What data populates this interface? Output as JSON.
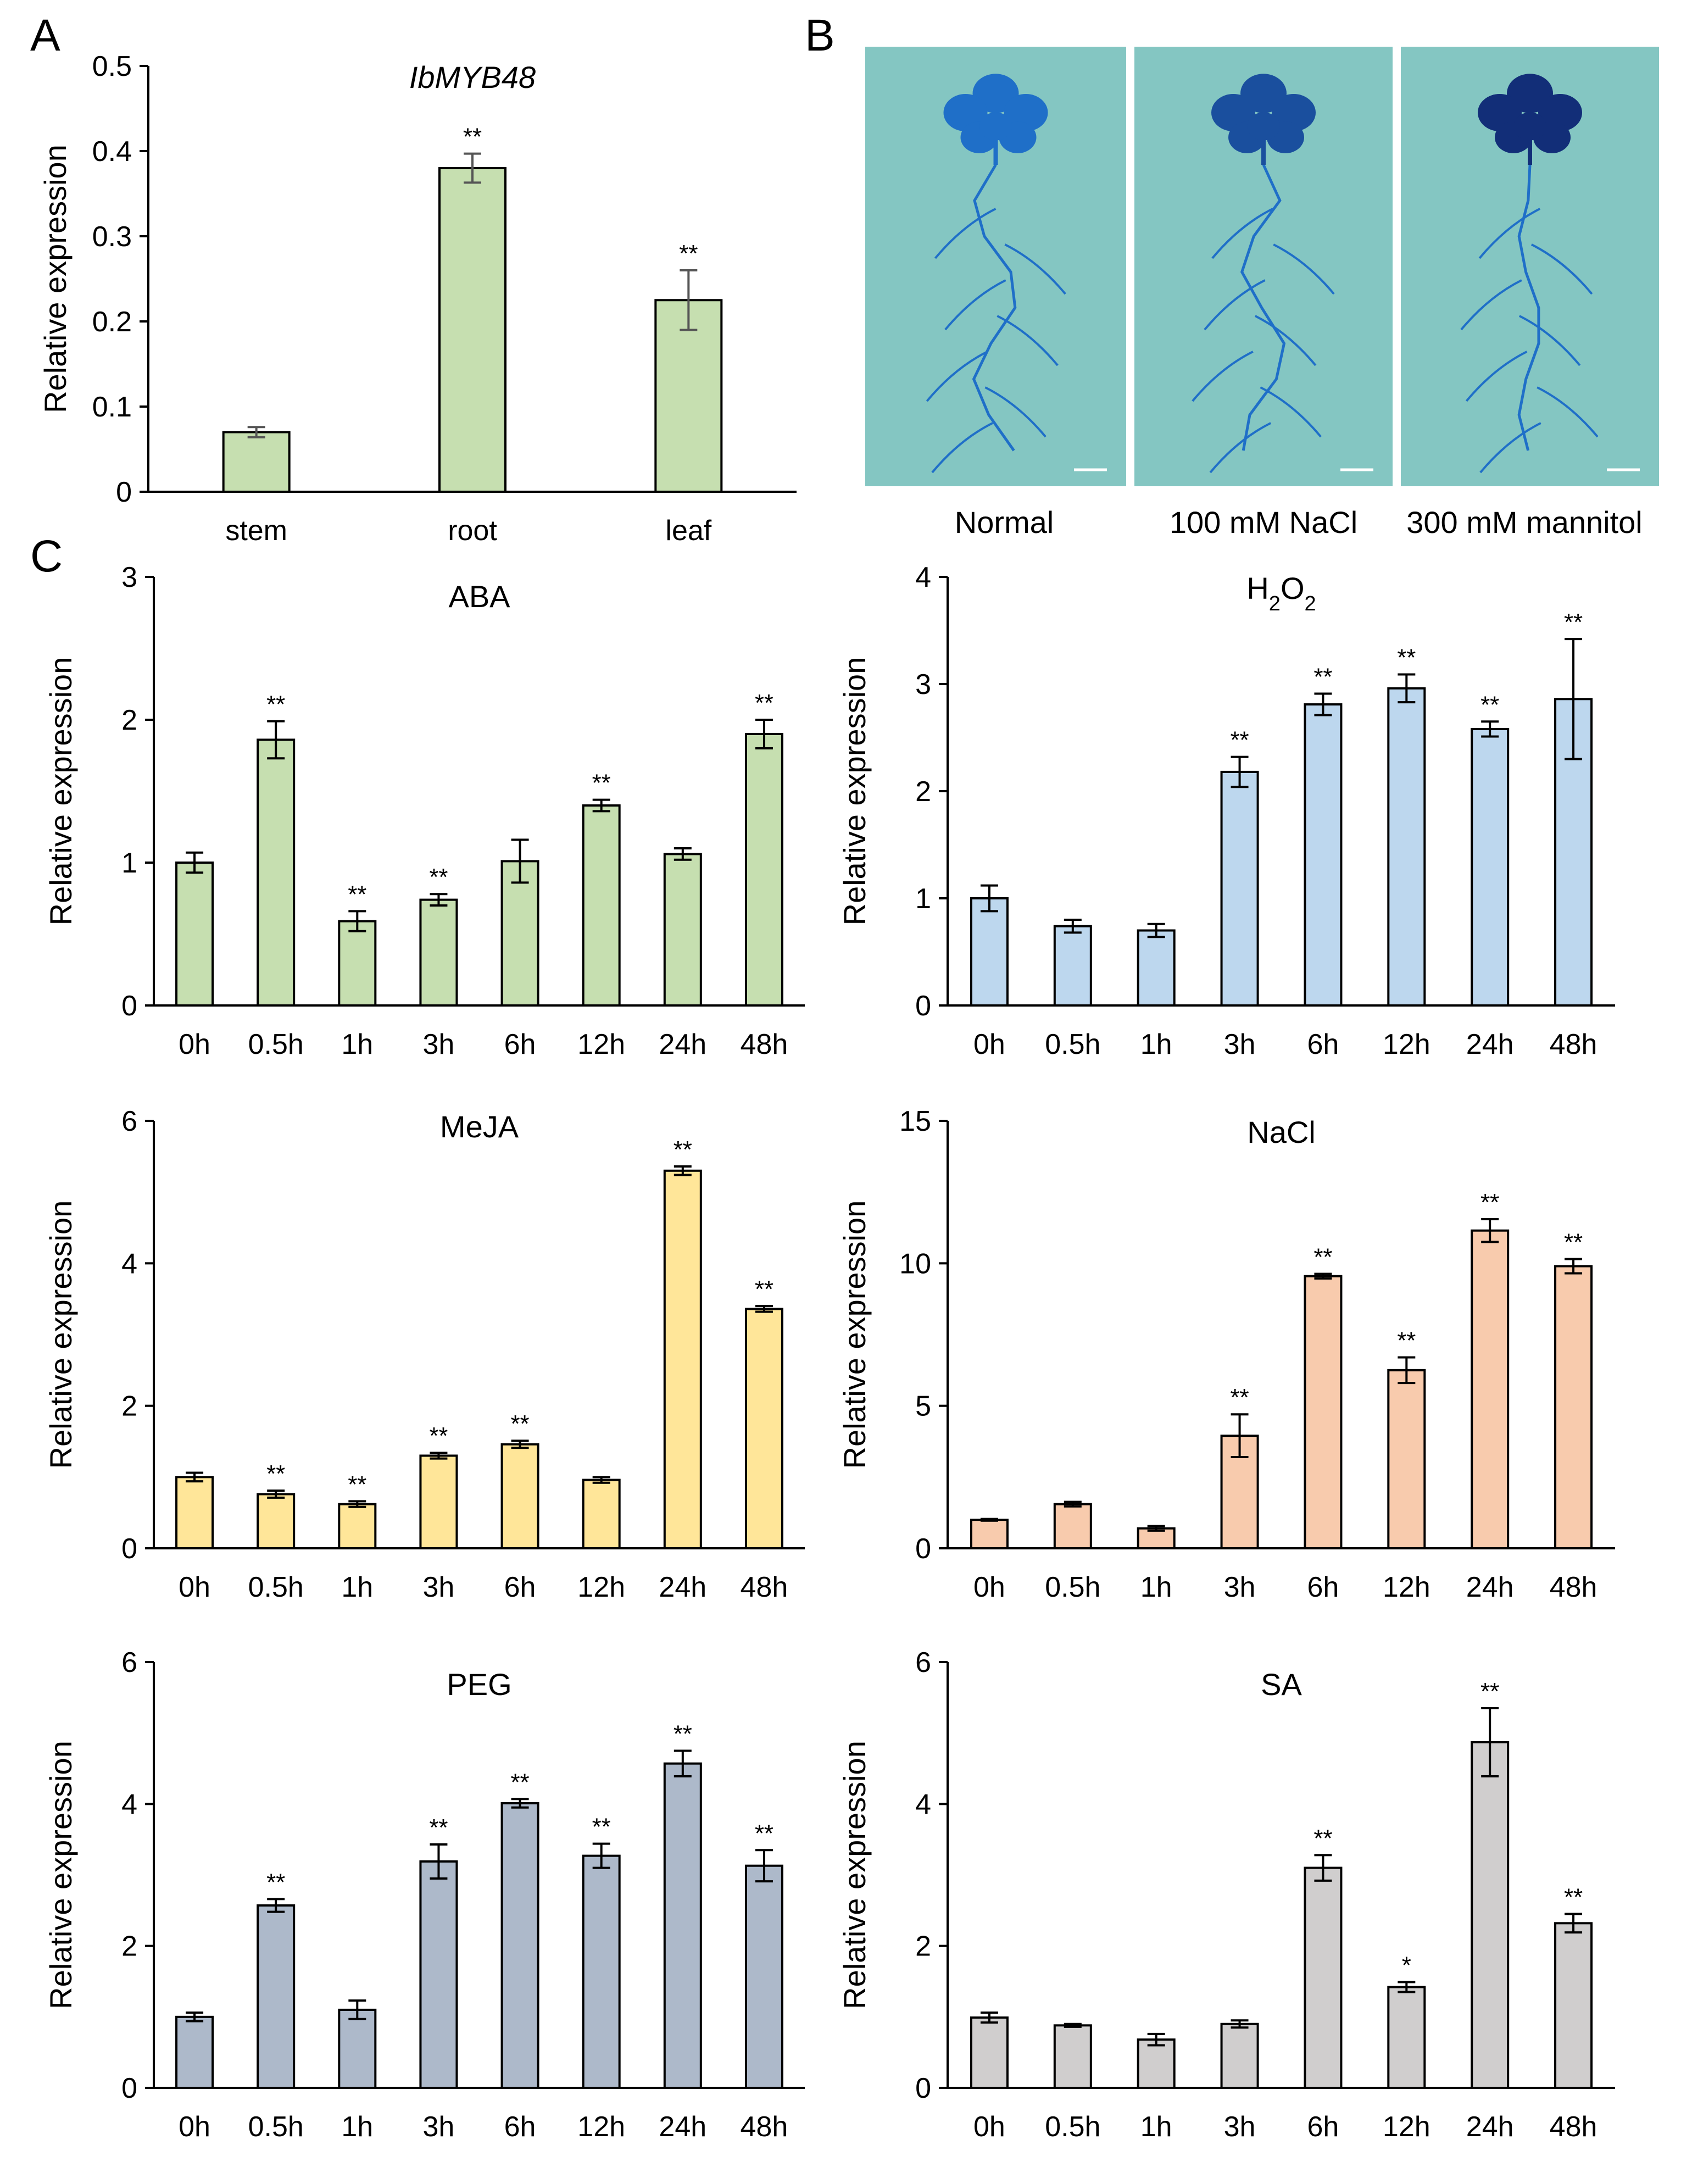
{
  "figure": {
    "panels": [
      "A",
      "B",
      "C"
    ],
    "ylabel": "Relative expression",
    "panel_b": {
      "labels": [
        "Normal",
        "100 mM NaCl",
        "300 mM mannitol"
      ],
      "colors": {
        "background": "#84c6c2",
        "stain": "#1f6fc8",
        "stain_dark": "#122e78"
      }
    }
  },
  "chart_data": [
    {
      "id": "A",
      "type": "bar",
      "title": "IbMYB48",
      "title_italic": true,
      "ylabel": "Relative expression",
      "xlabel": "",
      "categories": [
        "stem",
        "root",
        "leaf"
      ],
      "values": [
        0.07,
        0.38,
        0.225
      ],
      "errors": [
        0.006,
        0.017,
        0.035
      ],
      "sig": [
        "",
        "**",
        "**"
      ],
      "ylim": [
        0,
        0.5
      ],
      "yticks": [
        0,
        0.1,
        0.2,
        0.3,
        0.4,
        0.5
      ],
      "ytick_labels": [
        "0",
        "0.1",
        "0.2",
        "0.3",
        "0.4",
        "0.5"
      ],
      "color": "#c6dfb0",
      "edge_color": "#000000",
      "error_color": "#555555"
    },
    {
      "id": "ABA",
      "type": "bar",
      "title": "ABA",
      "ylabel": "Relative expression",
      "categories": [
        "0h",
        "0.5h",
        "1h",
        "3h",
        "6h",
        "12h",
        "24h",
        "48h"
      ],
      "values": [
        1.0,
        1.86,
        0.59,
        0.74,
        1.01,
        1.4,
        1.06,
        1.9
      ],
      "errors": [
        0.07,
        0.13,
        0.07,
        0.04,
        0.15,
        0.04,
        0.04,
        0.1
      ],
      "sig": [
        "",
        "**",
        "**",
        "**",
        "",
        "**",
        "",
        "**"
      ],
      "ylim": [
        0,
        3
      ],
      "yticks": [
        0,
        1,
        2,
        3
      ],
      "ytick_labels": [
        "0",
        "1",
        "2",
        "3"
      ],
      "color": "#c6dfb0"
    },
    {
      "id": "H2O2",
      "type": "bar",
      "title": "H2O2",
      "title_parts": [
        "H",
        "2",
        "O",
        "2"
      ],
      "ylabel": "Relative expression",
      "categories": [
        "0h",
        "0.5h",
        "1h",
        "3h",
        "6h",
        "12h",
        "24h",
        "48h"
      ],
      "values": [
        1.0,
        0.74,
        0.7,
        2.18,
        2.81,
        2.96,
        2.58,
        2.86
      ],
      "errors": [
        0.12,
        0.06,
        0.06,
        0.14,
        0.1,
        0.13,
        0.07,
        0.56
      ],
      "sig": [
        "",
        "",
        "",
        "**",
        "**",
        "**",
        "**",
        "**"
      ],
      "ylim": [
        0,
        4
      ],
      "yticks": [
        0,
        1,
        2,
        3,
        4
      ],
      "ytick_labels": [
        "0",
        "1",
        "2",
        "3",
        "4"
      ],
      "color": "#bdd7ee"
    },
    {
      "id": "MeJA",
      "type": "bar",
      "title": "MeJA",
      "ylabel": "Relative expression",
      "categories": [
        "0h",
        "0.5h",
        "1h",
        "3h",
        "6h",
        "12h",
        "24h",
        "48h"
      ],
      "values": [
        1.0,
        0.76,
        0.62,
        1.3,
        1.46,
        0.96,
        5.3,
        3.36
      ],
      "errors": [
        0.06,
        0.05,
        0.04,
        0.04,
        0.05,
        0.04,
        0.06,
        0.04
      ],
      "sig": [
        "",
        "**",
        "**",
        "**",
        "**",
        "",
        "**",
        "**"
      ],
      "ylim": [
        0,
        6
      ],
      "yticks": [
        0,
        2,
        4,
        6
      ],
      "ytick_labels": [
        "0",
        "2",
        "4",
        "6"
      ],
      "color": "#ffe699"
    },
    {
      "id": "NaCl",
      "type": "bar",
      "title": "NaCl",
      "ylabel": "Relative expression",
      "categories": [
        "0h",
        "0.5h",
        "1h",
        "3h",
        "6h",
        "12h",
        "24h",
        "48h"
      ],
      "values": [
        1.0,
        1.55,
        0.7,
        3.95,
        9.55,
        6.25,
        11.15,
        9.9
      ],
      "errors": [
        0.03,
        0.08,
        0.08,
        0.75,
        0.08,
        0.45,
        0.4,
        0.25
      ],
      "sig": [
        "",
        "",
        "",
        "**",
        "**",
        "**",
        "**",
        "**"
      ],
      "ylim": [
        0,
        15
      ],
      "yticks": [
        0,
        5,
        10,
        15
      ],
      "ytick_labels": [
        "0",
        "5",
        "10",
        "15"
      ],
      "color": "#f8cbad"
    },
    {
      "id": "PEG",
      "type": "bar",
      "title": "PEG",
      "ylabel": "Relative expression",
      "categories": [
        "0h",
        "0.5h",
        "1h",
        "3h",
        "6h",
        "12h",
        "24h",
        "48h"
      ],
      "values": [
        1.0,
        2.57,
        1.1,
        3.19,
        4.01,
        3.27,
        4.57,
        3.13
      ],
      "errors": [
        0.06,
        0.09,
        0.13,
        0.24,
        0.06,
        0.17,
        0.18,
        0.22
      ],
      "sig": [
        "",
        "**",
        "",
        "**",
        "**",
        "**",
        "**",
        "**"
      ],
      "ylim": [
        0,
        6
      ],
      "yticks": [
        0,
        2,
        4,
        6
      ],
      "ytick_labels": [
        "0",
        "2",
        "4",
        "6"
      ],
      "color": "#adb9ca"
    },
    {
      "id": "SA",
      "type": "bar",
      "title": "SA",
      "ylabel": "Relative expression",
      "categories": [
        "0h",
        "0.5h",
        "1h",
        "3h",
        "6h",
        "12h",
        "24h",
        "48h"
      ],
      "values": [
        0.99,
        0.88,
        0.68,
        0.9,
        3.1,
        1.42,
        4.87,
        2.32
      ],
      "errors": [
        0.07,
        0.02,
        0.08,
        0.05,
        0.18,
        0.07,
        0.48,
        0.13
      ],
      "sig": [
        "",
        "",
        "",
        "",
        "**",
        "*",
        "**",
        "**"
      ],
      "ylim": [
        0,
        6
      ],
      "yticks": [
        0,
        2,
        4,
        6
      ],
      "ytick_labels": [
        "0",
        "2",
        "4",
        "6"
      ],
      "color": "#d0cece"
    }
  ]
}
